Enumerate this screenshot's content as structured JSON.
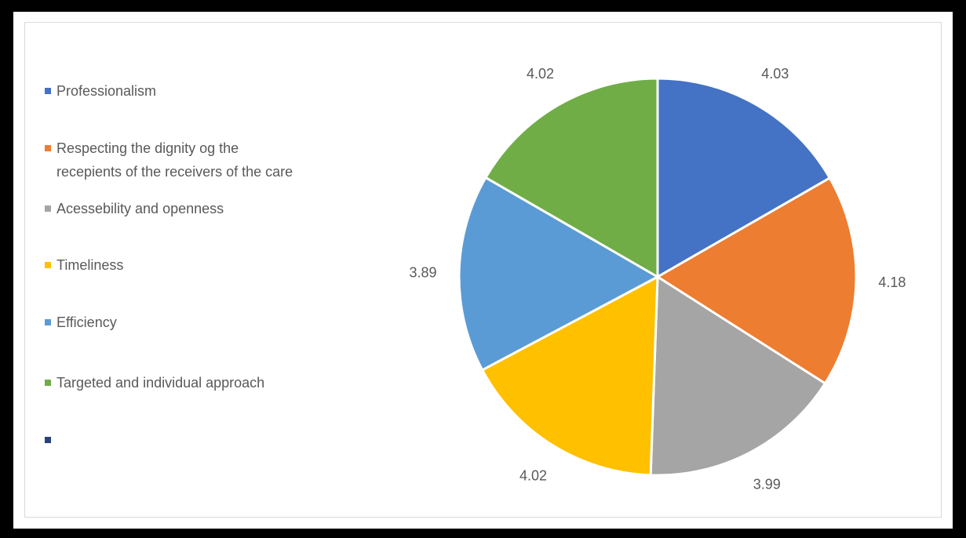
{
  "chart_data": {
    "type": "pie",
    "title": "",
    "categories": [
      "Professionalism",
      "Respecting the dignity og the recepients of the receivers of the care",
      "Acessebility and openness",
      "Timeliness",
      "Efficiency",
      "Targeted and individual approach"
    ],
    "values": [
      4.03,
      4.18,
      3.99,
      4.02,
      3.89,
      4.02
    ],
    "value_labels": [
      "4.03",
      "4.18",
      "3.99",
      "4.02",
      "3.89",
      "4.02"
    ],
    "colors": [
      "#4472C4",
      "#ED7D31",
      "#A5A5A5",
      "#FFC000",
      "#5B9BD5",
      "#70AD47"
    ],
    "legend_position": "left",
    "legend": [
      {
        "label": "Professionalism",
        "color": "#4472C4"
      },
      {
        "label": "Respecting the dignity og the",
        "label_line2": "recepients of the receivers of the care",
        "color": "#ED7D31"
      },
      {
        "label": "Acessebility and openness",
        "color": "#A5A5A5"
      },
      {
        "label": "Timeliness",
        "color": "#FFC000"
      },
      {
        "label": "Efficiency",
        "color": "#5B9BD5"
      },
      {
        "label": "Targeted and individual approach",
        "color": "#70AD47"
      },
      {
        "label": "",
        "color": "#264478"
      }
    ]
  }
}
